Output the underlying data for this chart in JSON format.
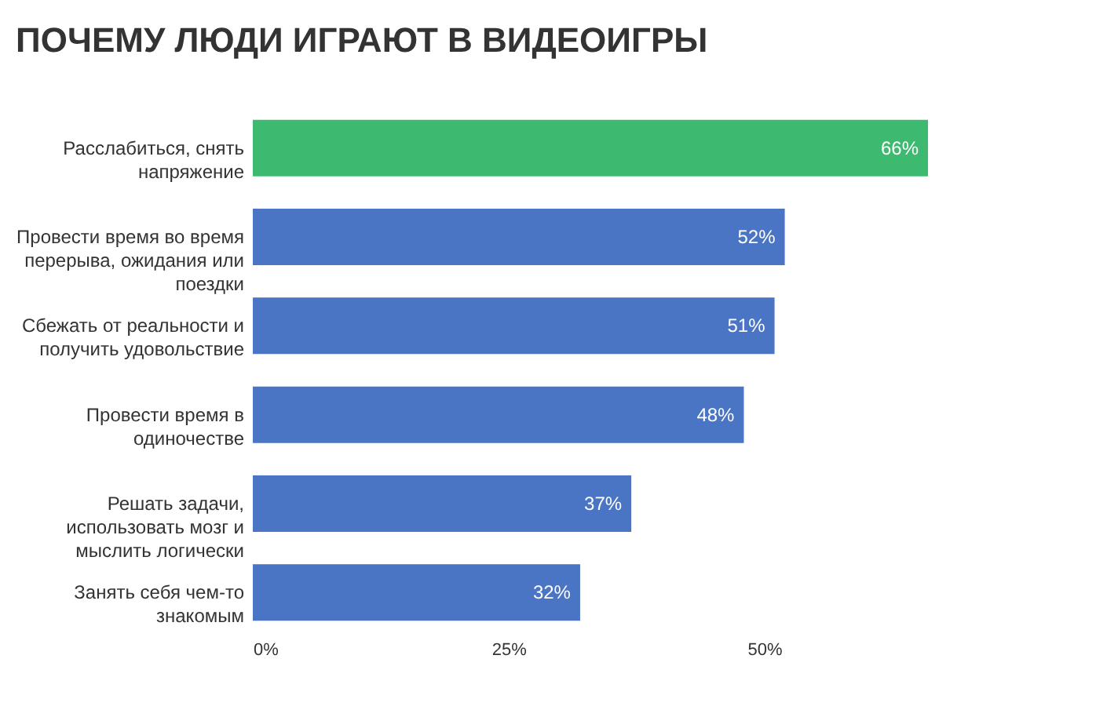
{
  "chart_data": {
    "type": "bar",
    "orientation": "horizontal",
    "title": "ПОЧЕМУ ЛЮДИ ИГРАЮТ В ВИДЕОИГРЫ",
    "categories": [
      "Расслабиться, снять напряжение",
      "Провести время во время перерыва, ожидания или поездки",
      "Сбежать от реальности и получить удовольствие",
      "Провести время в одиночестве",
      "Решать задачи, использовать мозг и мыслить логически",
      "Занять себя чем-то знакомым"
    ],
    "values": [
      66,
      52,
      51,
      48,
      37,
      32
    ],
    "colors": [
      "#3dba6f",
      "#4a74c4",
      "#4a74c4",
      "#4a74c4",
      "#4a74c4",
      "#4a74c4"
    ],
    "value_labels": [
      "66%",
      "52%",
      "51%",
      "48%",
      "37%",
      "32%"
    ],
    "xlim": [
      0,
      66
    ],
    "xticks": [
      {
        "value": 0,
        "label": "0%"
      },
      {
        "value": 25,
        "label": "25%"
      },
      {
        "value": 50,
        "label": "50%"
      }
    ],
    "grid": false
  }
}
